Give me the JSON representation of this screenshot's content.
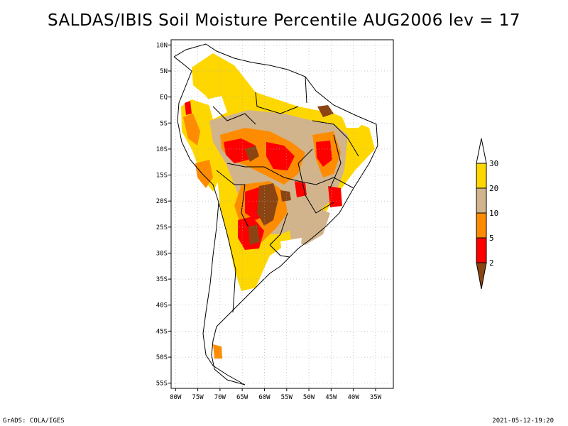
{
  "title": "SALDAS/IBIS Soil Moisture Percentile AUG2006 lev = 17",
  "footer_left": "GrADS: COLA/IGES",
  "footer_right": "2021-05-12-19:20",
  "map": {
    "lon_range": [
      -81,
      -31
    ],
    "lat_range": [
      -56,
      11
    ],
    "lat_ticks": [
      {
        "v": 10,
        "label": "10N"
      },
      {
        "v": 5,
        "label": "5N"
      },
      {
        "v": 0,
        "label": "EQ"
      },
      {
        "v": -5,
        "label": "5S"
      },
      {
        "v": -10,
        "label": "10S"
      },
      {
        "v": -15,
        "label": "15S"
      },
      {
        "v": -20,
        "label": "20S"
      },
      {
        "v": -25,
        "label": "25S"
      },
      {
        "v": -30,
        "label": "30S"
      },
      {
        "v": -35,
        "label": "35S"
      },
      {
        "v": -40,
        "label": "40S"
      },
      {
        "v": -45,
        "label": "45S"
      },
      {
        "v": -50,
        "label": "50S"
      },
      {
        "v": -55,
        "label": "55S"
      }
    ],
    "lon_ticks": [
      {
        "v": -80,
        "label": "80W"
      },
      {
        "v": -75,
        "label": "75W"
      },
      {
        "v": -70,
        "label": "70W"
      },
      {
        "v": -65,
        "label": "65W"
      },
      {
        "v": -60,
        "label": "60W"
      },
      {
        "v": -55,
        "label": "55W"
      },
      {
        "v": -50,
        "label": "50W"
      },
      {
        "v": -45,
        "label": "45W"
      },
      {
        "v": -40,
        "label": "40W"
      },
      {
        "v": -35,
        "label": "35W"
      }
    ],
    "gridlines": true
  },
  "colorbar": {
    "levels": [
      "2",
      "5",
      "10",
      "20",
      "30"
    ],
    "colors": [
      "#8b4513",
      "#ff0000",
      "#ff8c00",
      "#d2b48c",
      "#ffd700",
      "#ffffff"
    ]
  }
}
